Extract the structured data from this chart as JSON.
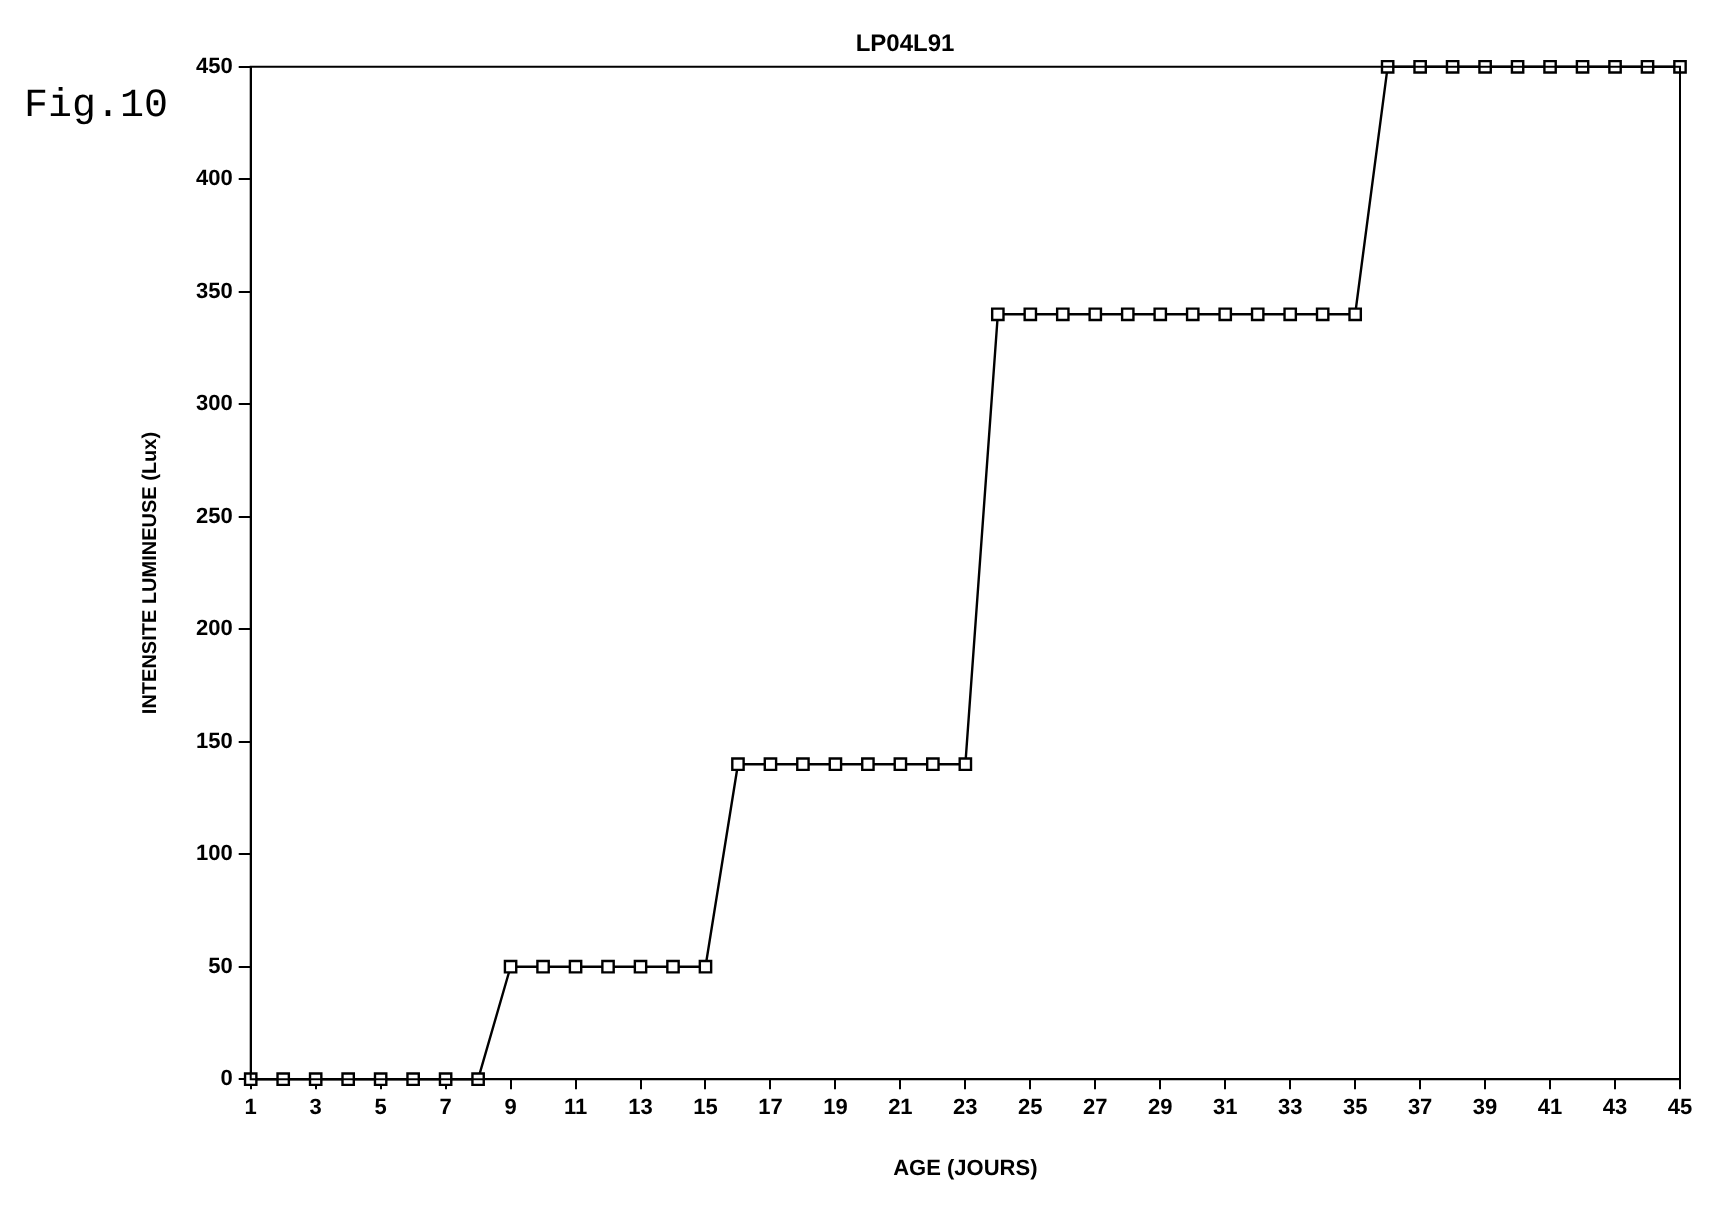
{
  "chart_data": {
    "type": "line",
    "title": "LP04L91",
    "xlabel": "AGE (JOURS)",
    "ylabel": "INTENSITE LUMINEUSE (Lux)",
    "annotations": [
      "Fig.10"
    ],
    "x": [
      1,
      2,
      3,
      4,
      5,
      6,
      7,
      8,
      9,
      10,
      11,
      12,
      13,
      14,
      15,
      16,
      17,
      18,
      19,
      20,
      21,
      22,
      23,
      24,
      25,
      26,
      27,
      28,
      29,
      30,
      31,
      32,
      33,
      34,
      35,
      36,
      37,
      38,
      39,
      40,
      41,
      42,
      43,
      44,
      45
    ],
    "series": [
      {
        "color": "#000000",
        "values": [
          0,
          0,
          0,
          0,
          0,
          0,
          0,
          0,
          50,
          50,
          50,
          50,
          50,
          50,
          50,
          140,
          140,
          140,
          140,
          140,
          140,
          140,
          140,
          340,
          340,
          340,
          340,
          340,
          340,
          340,
          340,
          340,
          340,
          340,
          340,
          450,
          450,
          450,
          450,
          450,
          450,
          450,
          450,
          450,
          450
        ]
      }
    ],
    "xlim": [
      1,
      45
    ],
    "xticks": [
      1,
      3,
      5,
      7,
      9,
      11,
      13,
      15,
      17,
      19,
      21,
      23,
      25,
      27,
      29,
      31,
      33,
      35,
      37,
      39,
      41,
      43,
      45
    ],
    "ylim": [
      0,
      450
    ],
    "yticks": [
      0,
      50,
      100,
      150,
      200,
      250,
      300,
      350,
      400,
      450
    ],
    "grid": false,
    "legend": false,
    "marker": "square",
    "line_style": "solid"
  }
}
